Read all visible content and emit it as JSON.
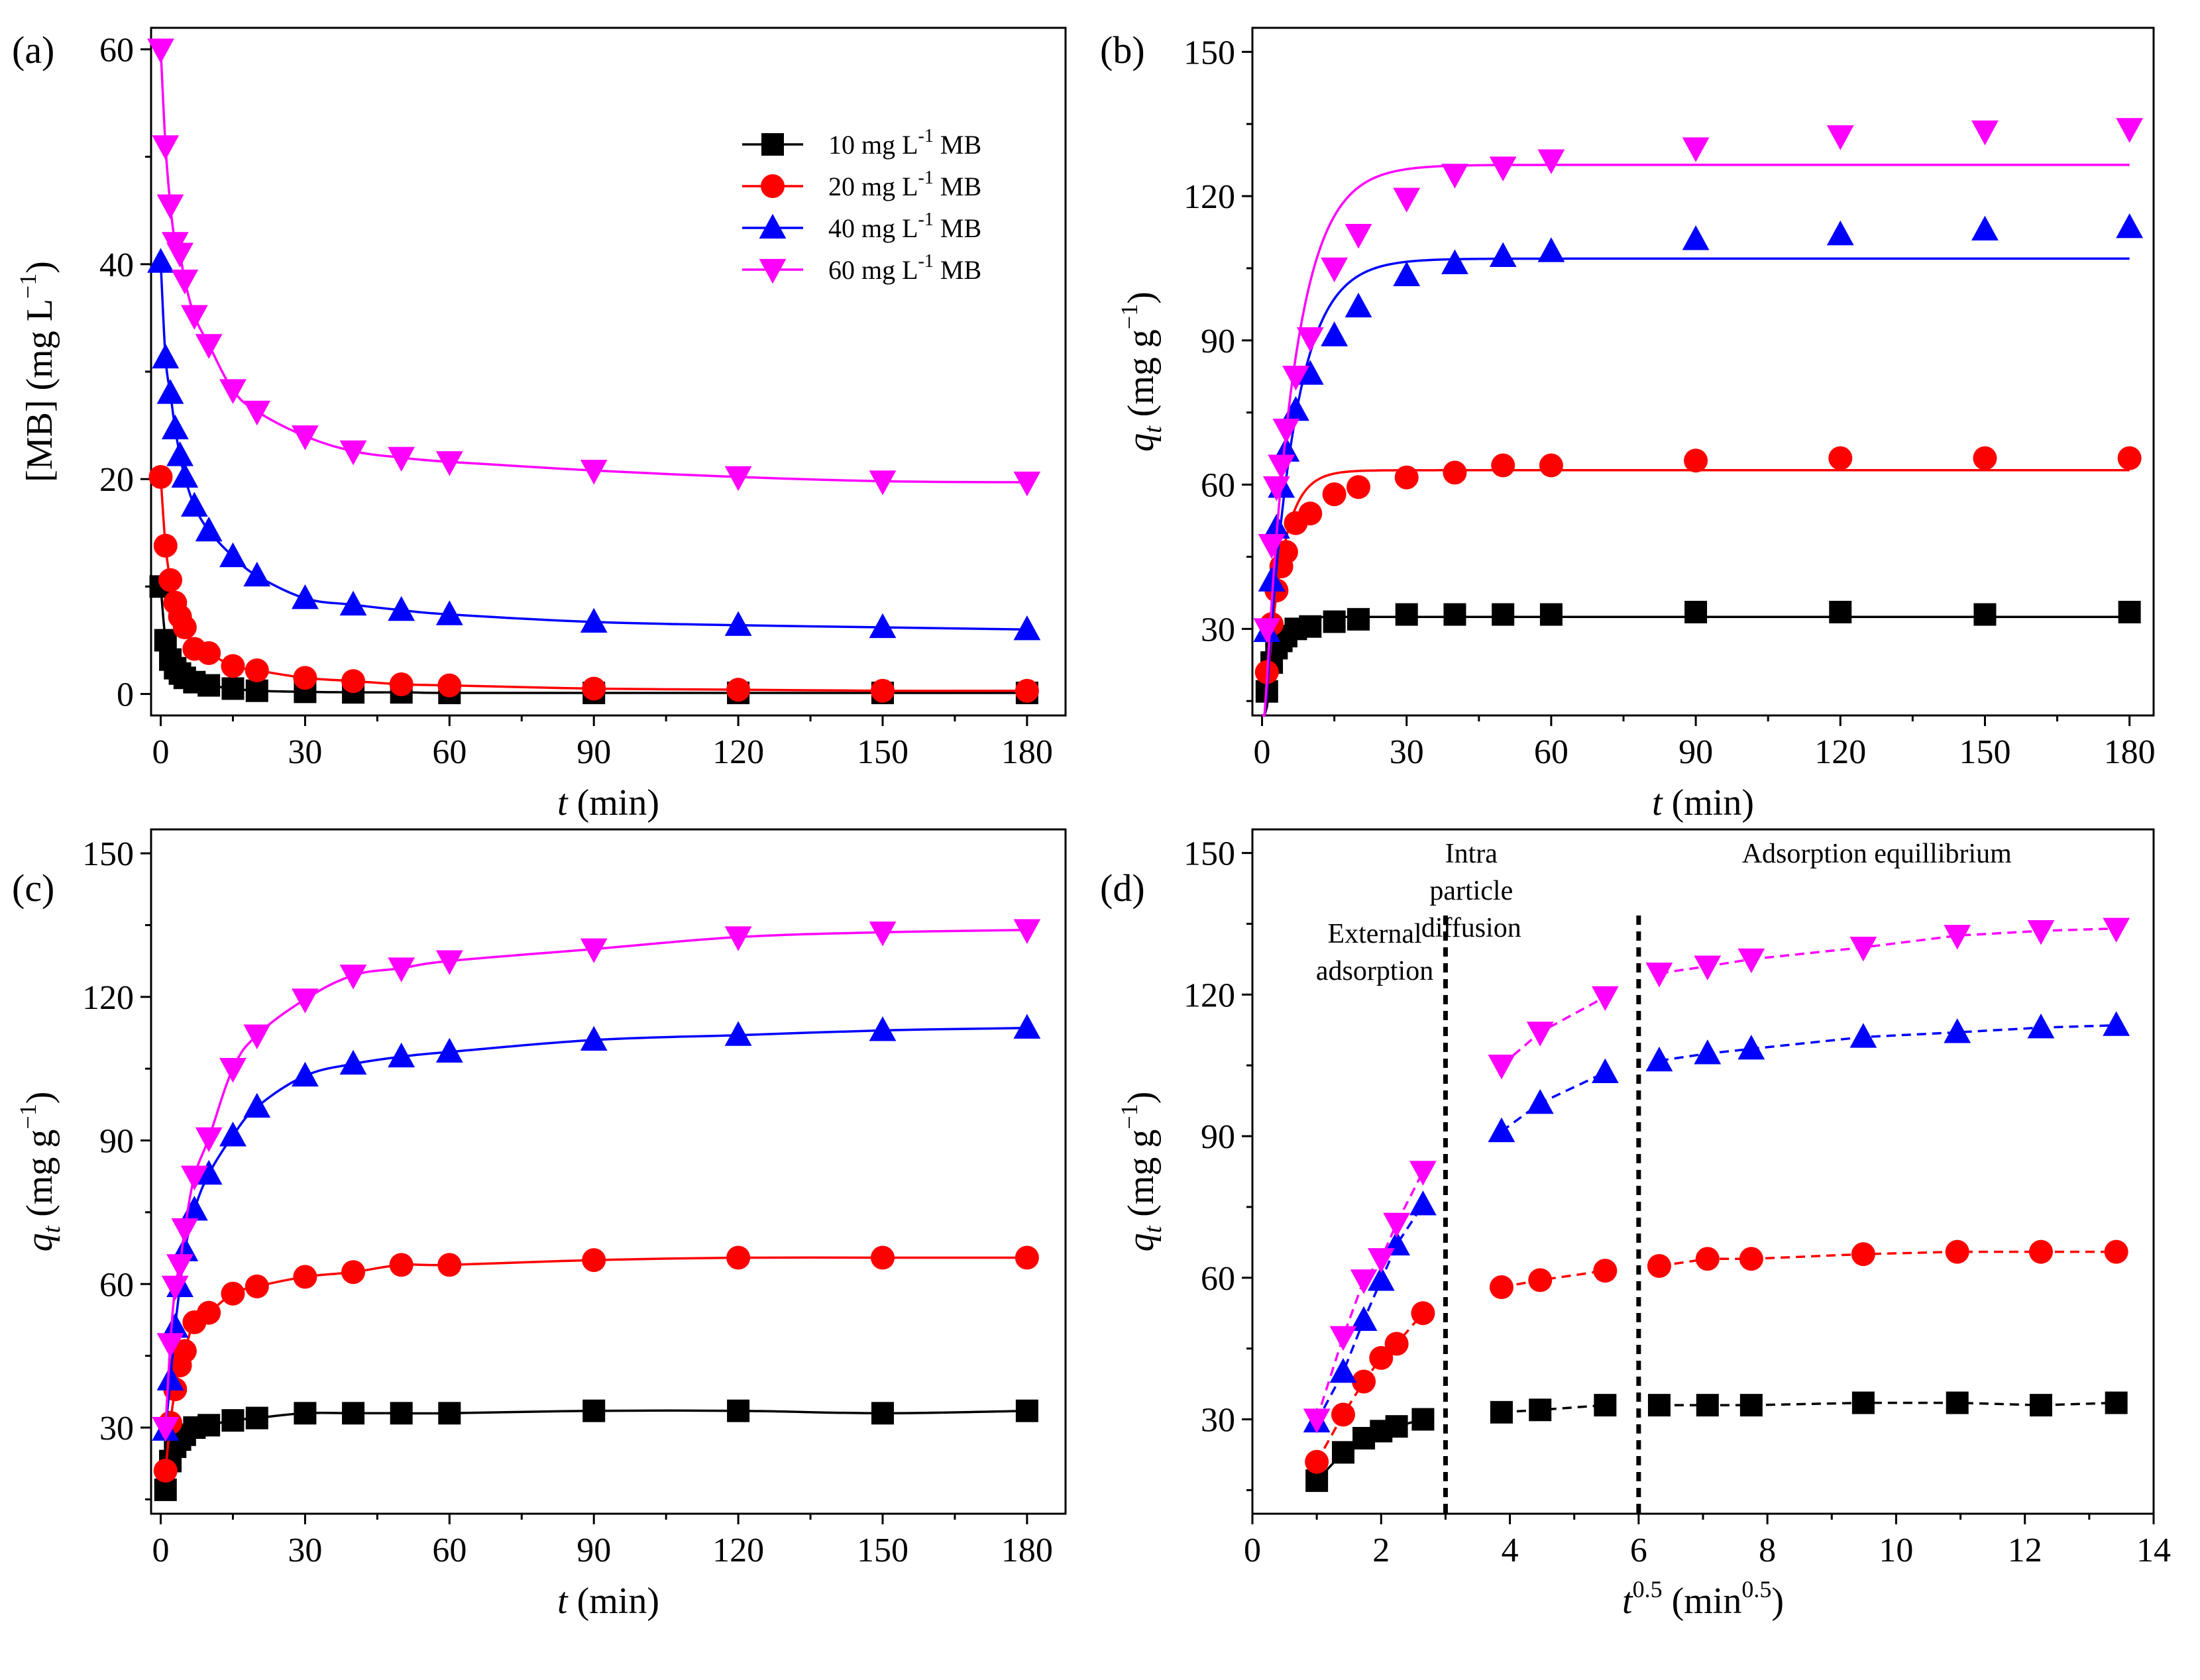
{
  "figure": {
    "series_colors": [
      "#000000",
      "#ff0000",
      "#0000ff",
      "#ff00ff"
    ],
    "series_markers": [
      "square",
      "circle",
      "triangle-up",
      "triangle-down"
    ],
    "legend_labels": [
      {
        "pre": "10 mg L",
        "sup": "-1",
        "post": " MB"
      },
      {
        "pre": "20 mg L",
        "sup": "-1",
        "post": " MB"
      },
      {
        "pre": "40 mg L",
        "sup": "-1",
        "post": " MB"
      },
      {
        "pre": "60 mg L",
        "sup": "-1",
        "post": " MB"
      }
    ]
  },
  "chart_data": [
    {
      "panel": "(a)",
      "type": "line",
      "xlim": [
        -2,
        188
      ],
      "ylim": [
        -2,
        62
      ],
      "xticks": [
        0,
        30,
        60,
        90,
        120,
        150,
        180
      ],
      "yticks": [
        0,
        20,
        40,
        60
      ],
      "yminor": [
        10,
        30,
        50
      ],
      "xlabel": {
        "italic": "t",
        "normal": " (min)"
      },
      "ylabel": {
        "pre": "[MB] (mg L",
        "sup": "−1",
        "post": ")"
      },
      "legend": true,
      "curve": "fit",
      "series": [
        {
          "name": "10 mg L-1 MB",
          "x": [
            0,
            1,
            2,
            3,
            4,
            5,
            7,
            10,
            15,
            20,
            30,
            40,
            50,
            60,
            90,
            120,
            150,
            180
          ],
          "y": [
            10.0,
            5.0,
            3.2,
            2.4,
            1.9,
            1.5,
            1.1,
            0.8,
            0.5,
            0.3,
            0.2,
            0.15,
            0.15,
            0.1,
            0.1,
            0.1,
            0.1,
            0.1
          ]
        },
        {
          "name": "20 mg L-1 MB",
          "x": [
            0,
            1,
            2,
            3,
            4,
            5,
            7,
            10,
            15,
            20,
            30,
            40,
            50,
            60,
            90,
            120,
            150,
            180
          ],
          "y": [
            20.2,
            13.8,
            10.6,
            8.5,
            7.2,
            6.2,
            4.2,
            3.8,
            2.6,
            2.2,
            1.5,
            1.2,
            0.9,
            0.8,
            0.5,
            0.4,
            0.3,
            0.3
          ]
        },
        {
          "name": "40 mg L-1 MB",
          "x": [
            0,
            1,
            2,
            3,
            4,
            5,
            7,
            10,
            15,
            20,
            30,
            40,
            50,
            60,
            90,
            120,
            150,
            180
          ],
          "y": [
            40.2,
            31.3,
            28.0,
            24.7,
            22.2,
            20.2,
            17.5,
            15.2,
            12.8,
            11.0,
            8.9,
            8.3,
            7.8,
            7.4,
            6.7,
            6.4,
            6.2,
            6.0
          ]
        },
        {
          "name": "60 mg L-1 MB",
          "x": [
            0,
            1,
            2,
            3,
            4,
            5,
            7,
            10,
            15,
            20,
            30,
            40,
            50,
            60,
            90,
            120,
            150,
            180
          ],
          "y": [
            60.0,
            51.0,
            45.5,
            42.0,
            41.0,
            38.5,
            35.2,
            32.5,
            28.3,
            26.3,
            24.0,
            22.6,
            22.0,
            21.6,
            20.8,
            20.2,
            19.8,
            19.7
          ]
        }
      ]
    },
    {
      "panel": "(b)",
      "type": "line",
      "xlim": [
        -2,
        185
      ],
      "ylim": [
        12,
        155
      ],
      "xticks": [
        0,
        30,
        60,
        90,
        120,
        150,
        180
      ],
      "yticks": [
        30,
        60,
        90,
        120,
        150
      ],
      "yminor": [
        15,
        45,
        75,
        105,
        135
      ],
      "xlabel": {
        "italic": "t",
        "normal": " (min)"
      },
      "ylabel": {
        "italic": "q",
        "sub": "t",
        "pre": " (mg g",
        "sup": "−1",
        "post": ")"
      },
      "legend": false,
      "curve": "pfo",
      "pfo_params": [
        {
          "qe": 32.5,
          "k": 0.55
        },
        {
          "qe": 63.0,
          "k": 0.3
        },
        {
          "qe": 107.0,
          "k": 0.17
        },
        {
          "qe": 126.5,
          "k": 0.165
        }
      ],
      "series": [
        {
          "name": "10 mg L-1 MB",
          "x": [
            1,
            2,
            3,
            4,
            5,
            7,
            10,
            15,
            20,
            30,
            40,
            50,
            60,
            90,
            120,
            150,
            180
          ],
          "y": [
            17,
            23,
            26,
            27.5,
            28.5,
            30,
            30.5,
            31.5,
            32,
            33,
            33,
            33,
            33,
            33.5,
            33.5,
            33,
            33.5
          ]
        },
        {
          "name": "20 mg L-1 MB",
          "x": [
            1,
            2,
            3,
            4,
            5,
            7,
            10,
            15,
            20,
            30,
            40,
            50,
            60,
            90,
            120,
            150,
            180
          ],
          "y": [
            21,
            31,
            38,
            43,
            46,
            52,
            54,
            58,
            59.5,
            61.5,
            62.5,
            64,
            64,
            65,
            65.5,
            65.5,
            65.5
          ]
        },
        {
          "name": "40 mg L-1 MB",
          "x": [
            1,
            2,
            3,
            4,
            5,
            7,
            10,
            15,
            20,
            30,
            40,
            50,
            60,
            90,
            120,
            150,
            180
          ],
          "y": [
            29.5,
            40,
            51,
            59.5,
            67,
            75.5,
            83,
            91,
            97,
            103.5,
            106,
            107.5,
            108.5,
            111,
            112,
            113,
            113.5
          ]
        },
        {
          "name": "60 mg L-1 MB",
          "x": [
            1,
            2,
            3,
            4,
            5,
            7,
            10,
            15,
            20,
            30,
            40,
            50,
            60,
            90,
            120,
            150,
            180
          ],
          "y": [
            30,
            47.5,
            59.5,
            64,
            71.5,
            82.5,
            90.5,
            105,
            112,
            119.5,
            124.5,
            126,
            127.5,
            130,
            132.5,
            133.5,
            134
          ]
        }
      ]
    },
    {
      "panel": "(c)",
      "type": "line",
      "xlim": [
        -2,
        188
      ],
      "ylim": [
        12,
        155
      ],
      "xticks": [
        0,
        30,
        60,
        90,
        120,
        150,
        180
      ],
      "yticks": [
        30,
        60,
        90,
        120,
        150
      ],
      "yminor": [
        15,
        45,
        75,
        105,
        135
      ],
      "xlabel": {
        "italic": "t",
        "normal": " (min)"
      },
      "ylabel": {
        "italic": "q",
        "sub": "t",
        "pre": " (mg g",
        "sup": "−1",
        "post": ")"
      },
      "legend": false,
      "curve": "fit",
      "series": [
        {
          "name": "10 mg L-1 MB",
          "x": [
            1,
            2,
            3,
            4,
            5,
            7,
            10,
            15,
            20,
            30,
            40,
            50,
            60,
            90,
            120,
            150,
            180
          ],
          "y": [
            17,
            23,
            26,
            27.5,
            28.5,
            30,
            30.5,
            31.5,
            32,
            33,
            33,
            33,
            33,
            33.5,
            33.5,
            33,
            33.5
          ]
        },
        {
          "name": "20 mg L-1 MB",
          "x": [
            1,
            2,
            3,
            4,
            5,
            7,
            10,
            15,
            20,
            30,
            40,
            50,
            60,
            90,
            120,
            150,
            180
          ],
          "y": [
            21,
            31,
            38,
            43,
            46,
            52,
            54,
            58,
            59.5,
            61.5,
            62.5,
            64,
            64,
            65,
            65.5,
            65.5,
            65.5
          ]
        },
        {
          "name": "40 mg L-1 MB",
          "x": [
            1,
            2,
            3,
            4,
            5,
            7,
            10,
            15,
            20,
            30,
            40,
            50,
            60,
            90,
            120,
            150,
            180
          ],
          "y": [
            29.5,
            40,
            51,
            59.5,
            67,
            75.5,
            83,
            91,
            97,
            103.5,
            106,
            107.5,
            108.5,
            111,
            112,
            113,
            113.5
          ]
        },
        {
          "name": "60 mg L-1 MB",
          "x": [
            1,
            2,
            3,
            4,
            5,
            7,
            10,
            15,
            20,
            30,
            40,
            50,
            60,
            90,
            120,
            150,
            180
          ],
          "y": [
            30,
            47.5,
            59.5,
            64,
            71.5,
            82.5,
            90.5,
            105,
            112,
            119.5,
            124.5,
            126,
            127.5,
            130,
            132.5,
            133.5,
            134
          ]
        }
      ]
    },
    {
      "panel": "(d)",
      "type": "line",
      "xlim": [
        0,
        14
      ],
      "ylim": [
        10,
        155
      ],
      "xticks": [
        0,
        2,
        4,
        6,
        8,
        10,
        12,
        14
      ],
      "yticks": [
        30,
        60,
        90,
        120,
        150
      ],
      "yminor": [
        15,
        45,
        75,
        105,
        135
      ],
      "xlabel": {
        "pre": "t",
        "sup": "0.5",
        "mid": " (min",
        "sup2": "0.5",
        "post": ")"
      },
      "ylabel": {
        "italic": "q",
        "sub": "t",
        "pre": " (mg g",
        "sup": "−1",
        "post": ")"
      },
      "legend": false,
      "curve": "segments",
      "segment_breaks": [
        3.0,
        6.0
      ],
      "annotations": [
        {
          "lines": [
            "External",
            "adsorption"
          ],
          "x": 1.9,
          "y": 131
        },
        {
          "lines": [
            "Intra",
            "particle",
            "diffusion"
          ],
          "x": 3.4,
          "y": 148
        },
        {
          "lines": [
            "Adsorption equillibrium"
          ],
          "x": 9.7,
          "y": 148
        }
      ],
      "series": [
        {
          "name": "10 mg L-1 MB",
          "x": [
            1.0,
            1.41,
            1.73,
            2.0,
            2.24,
            2.65,
            3.87,
            4.47,
            5.48,
            6.32,
            7.07,
            7.75,
            9.49,
            10.95,
            12.25,
            13.42
          ],
          "y": [
            17,
            23,
            26,
            27.5,
            28.5,
            30,
            31.5,
            32,
            33,
            33,
            33,
            33,
            33.5,
            33.5,
            33,
            33.5
          ]
        },
        {
          "name": "20 mg L-1 MB",
          "x": [
            1.0,
            1.41,
            1.73,
            2.0,
            2.24,
            2.65,
            3.87,
            4.47,
            5.48,
            6.32,
            7.07,
            7.75,
            9.49,
            10.95,
            12.25,
            13.42
          ],
          "y": [
            21,
            31,
            38,
            43,
            46,
            52.5,
            58,
            59.5,
            61.5,
            62.5,
            64,
            64,
            65,
            65.5,
            65.5,
            65.5
          ]
        },
        {
          "name": "40 mg L-1 MB",
          "x": [
            1.0,
            1.41,
            1.73,
            2.0,
            2.24,
            2.65,
            3.87,
            4.47,
            5.48,
            6.32,
            7.07,
            7.75,
            9.49,
            10.95,
            12.25,
            13.42
          ],
          "y": [
            29.5,
            40,
            51,
            59.5,
            67,
            75.5,
            91,
            97,
            103.5,
            106,
            107.5,
            108.5,
            111,
            112,
            113,
            113.5
          ]
        },
        {
          "name": "60 mg L-1 MB",
          "x": [
            1.0,
            1.41,
            1.73,
            2.0,
            2.24,
            2.65,
            3.87,
            4.47,
            5.48,
            6.32,
            7.07,
            7.75,
            9.49,
            10.95,
            12.25,
            13.42
          ],
          "y": [
            30,
            47.5,
            59.5,
            64,
            71.5,
            82.5,
            105,
            112,
            119.5,
            124.5,
            126,
            127.5,
            130,
            132.5,
            133.5,
            134
          ]
        }
      ]
    }
  ]
}
